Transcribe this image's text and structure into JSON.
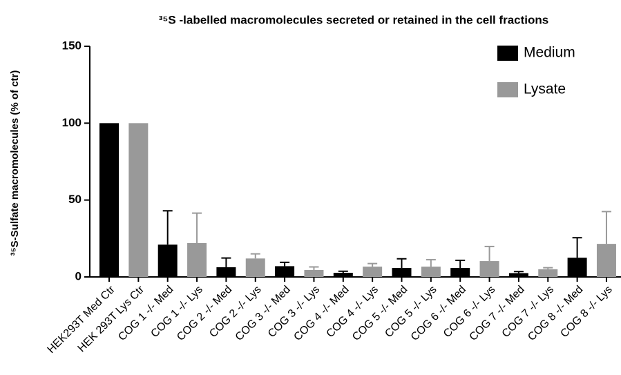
{
  "chart_data": {
    "type": "bar",
    "title": "³⁵S -labelled macromolecules secreted or retained in the cell fractions",
    "y_label": "³⁵S-Sulfate macromolecules (% of ctr)",
    "categories": [
      "HEK293T Med Ctr",
      "HEK 293T Lys Ctr",
      "COG 1 -/- Med",
      "COG 1 -/- Lys",
      "COG 2 -/- Med",
      "COG 2 -/- Lys",
      "COG 3 -/- Med",
      "COG 3 -/- Lys",
      "COG 4 -/- Med",
      "COG 4 -/- Lys",
      "COG 5 -/- Med",
      "COG 5 -/- Lys",
      "COG 6 -/- Med",
      "COG 6 -/- Lys",
      "COG 7 -/- Med",
      "COG 7 -/- Lys",
      "COG 8 -/- Med",
      "COG 8 -/- Lys"
    ],
    "series": [
      {
        "name": "Medium",
        "color": "#000000",
        "values": [
          100,
          null,
          21,
          null,
          6.3,
          null,
          7,
          null,
          2.7,
          null,
          5.8,
          null,
          5.8,
          null,
          2.5,
          null,
          12.5,
          null
        ],
        "errors": [
          null,
          null,
          22,
          null,
          6,
          null,
          2.5,
          null,
          1,
          null,
          6,
          null,
          5,
          null,
          1,
          null,
          13,
          null
        ]
      },
      {
        "name": "Lysate",
        "color": "#999999",
        "values": [
          null,
          100,
          null,
          22,
          null,
          12,
          null,
          4.5,
          null,
          6.7,
          null,
          6.7,
          null,
          10.3,
          null,
          5,
          null,
          21.5
        ],
        "errors": [
          null,
          null,
          null,
          19.5,
          null,
          3,
          null,
          2,
          null,
          2,
          null,
          4.5,
          null,
          9.5,
          null,
          1,
          null,
          21
        ]
      }
    ],
    "ylim": [
      0,
      150
    ],
    "yticks": [
      0,
      50,
      100,
      150
    ],
    "grid": false,
    "legend": "upper right"
  }
}
